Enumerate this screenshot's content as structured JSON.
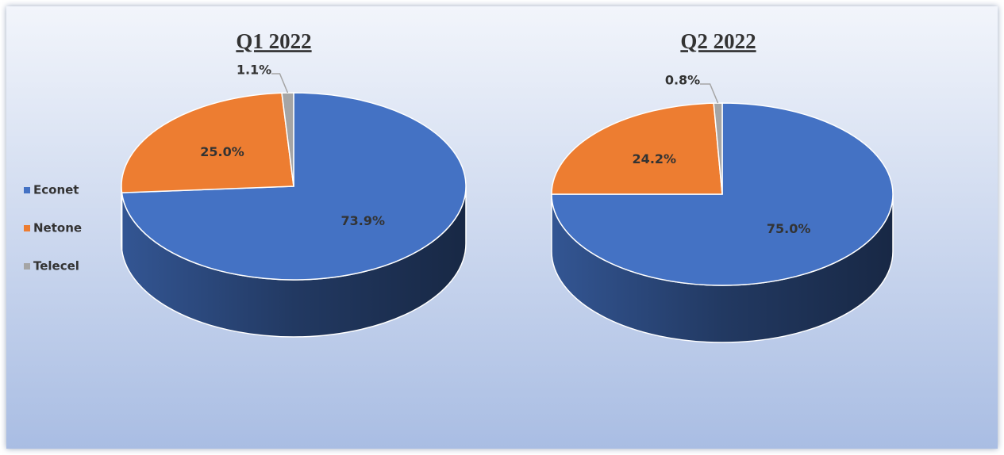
{
  "chart_data": [
    {
      "type": "pie",
      "title": "Q1 2022",
      "categories": [
        "Econet",
        "Netone",
        "Telecel"
      ],
      "values": [
        73.9,
        25.0,
        1.1
      ],
      "value_labels": [
        "73.9%",
        "25.0%",
        "1.1%"
      ],
      "colors": [
        "#4472c4",
        "#ed7d31",
        "#a5a5a5"
      ],
      "legend": "left"
    },
    {
      "type": "pie",
      "title": "Q2 2022",
      "categories": [
        "Econet",
        "Netone",
        "Telecel"
      ],
      "values": [
        75.0,
        24.2,
        0.8
      ],
      "value_labels": [
        "75.0%",
        "24.2%",
        "0.8%"
      ],
      "colors": [
        "#4472c4",
        "#ed7d31",
        "#a5a5a5"
      ]
    }
  ]
}
